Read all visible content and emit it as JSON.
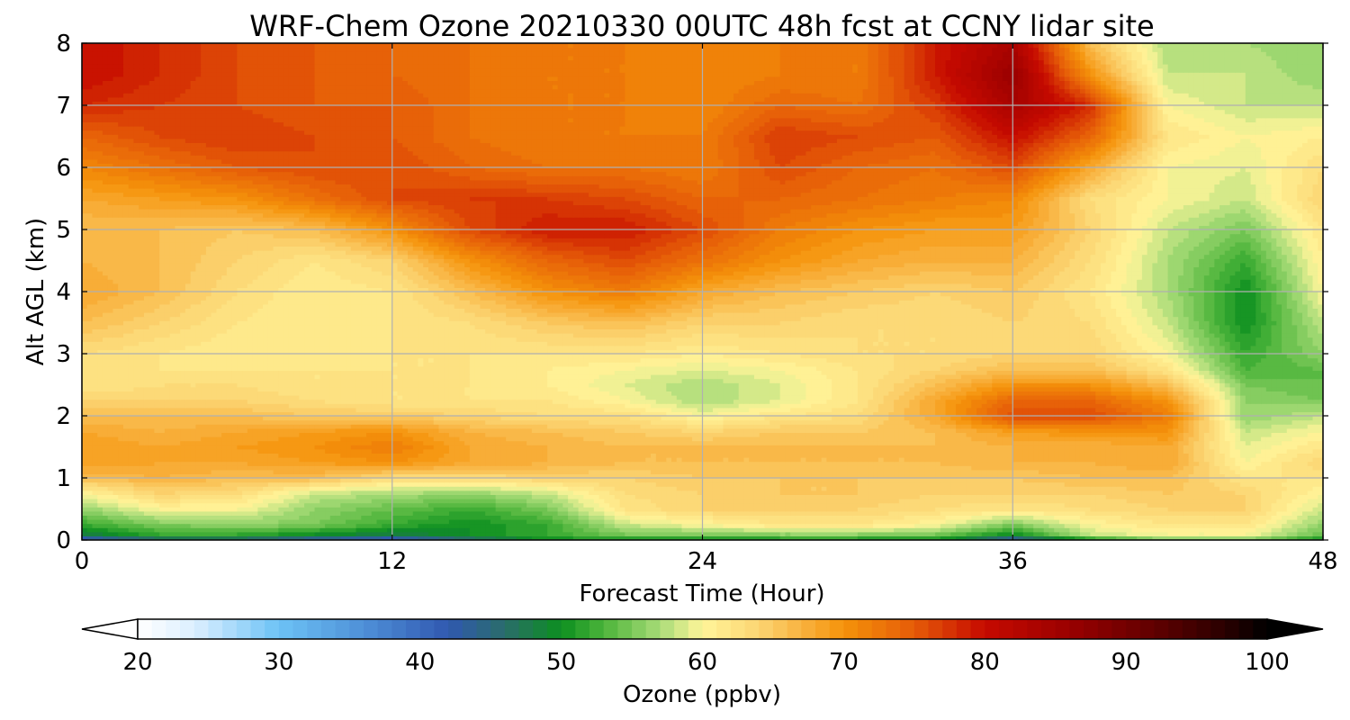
{
  "chart_data": {
    "type": "heatmap",
    "title": "WRF-Chem Ozone  20210330 00UTC 48h fcst at CCNY lidar site",
    "xlabel": "Forecast Time (Hour)",
    "ylabel": "Alt AGL (km)",
    "x_ticks": [
      "0",
      "12",
      "24",
      "36",
      "48"
    ],
    "y_ticks": [
      "0",
      "1",
      "2",
      "3",
      "4",
      "5",
      "6",
      "7",
      "8"
    ],
    "xlim": [
      0,
      48
    ],
    "ylim": [
      0,
      8
    ],
    "grid": true,
    "x": [
      0,
      3,
      6,
      9,
      12,
      15,
      18,
      21,
      24,
      27,
      30,
      33,
      36,
      39,
      42,
      45,
      48
    ],
    "y": [
      0,
      0.1,
      0.25,
      0.5,
      0.75,
      1,
      1.25,
      1.5,
      1.75,
      2,
      2.25,
      2.5,
      2.75,
      3,
      3.5,
      4,
      4.5,
      5,
      5.5,
      6,
      6.5,
      7,
      7.5,
      8
    ],
    "z": [
      [
        40,
        45,
        45,
        42,
        40,
        45,
        50,
        50,
        50,
        50,
        50,
        50,
        42,
        50,
        55,
        55,
        50
      ],
      [
        48,
        52,
        52,
        50,
        48,
        50,
        52,
        55,
        55,
        56,
        56,
        55,
        50,
        58,
        60,
        60,
        54
      ],
      [
        52,
        55,
        56,
        55,
        52,
        50,
        52,
        58,
        60,
        62,
        62,
        60,
        55,
        60,
        62,
        62,
        56
      ],
      [
        56,
        60,
        60,
        56,
        54,
        52,
        55,
        62,
        64,
        64,
        64,
        63,
        62,
        63,
        64,
        64,
        58
      ],
      [
        60,
        64,
        63,
        58,
        57,
        56,
        58,
        63,
        64,
        65,
        65,
        64,
        64,
        64,
        65,
        64,
        60
      ],
      [
        66,
        67,
        66,
        66,
        63,
        63,
        64,
        64,
        65,
        65,
        65,
        65,
        65,
        66,
        66,
        62,
        62
      ],
      [
        69,
        68,
        68,
        69,
        70,
        68,
        67,
        66,
        66,
        66,
        66,
        66,
        67,
        67,
        68,
        60,
        64
      ],
      [
        69,
        68,
        69,
        70,
        72,
        68,
        67,
        66,
        66,
        66,
        66,
        66,
        67,
        67,
        68,
        59,
        62
      ],
      [
        68,
        67,
        68,
        69,
        70,
        67,
        66,
        65,
        64,
        65,
        65,
        66,
        69,
        70,
        70,
        58,
        60
      ],
      [
        66,
        66,
        66,
        65,
        65,
        64,
        63,
        63,
        60,
        62,
        63,
        68,
        76,
        76,
        72,
        56,
        58
      ],
      [
        64,
        64,
        64,
        63,
        62,
        62,
        62,
        60,
        57,
        59,
        62,
        68,
        74,
        74,
        70,
        56,
        55
      ],
      [
        62,
        63,
        63,
        62,
        62,
        62,
        61,
        59,
        57,
        59,
        62,
        66,
        70,
        70,
        66,
        55,
        54
      ],
      [
        62,
        62,
        62,
        62,
        62,
        62,
        61,
        60,
        59,
        60,
        62,
        64,
        66,
        66,
        62,
        53,
        54
      ],
      [
        63,
        62,
        61,
        61,
        62,
        62,
        62,
        62,
        61,
        62,
        63,
        63,
        64,
        64,
        60,
        52,
        56
      ],
      [
        66,
        64,
        62,
        61,
        62,
        63,
        65,
        66,
        64,
        64,
        63,
        63,
        64,
        63,
        58,
        50,
        58
      ],
      [
        68,
        66,
        63,
        61,
        62,
        66,
        70,
        72,
        68,
        66,
        65,
        64,
        65,
        62,
        57,
        50,
        60
      ],
      [
        67,
        66,
        64,
        62,
        64,
        70,
        74,
        76,
        73,
        70,
        68,
        67,
        67,
        63,
        57,
        52,
        61
      ],
      [
        66,
        66,
        65,
        66,
        70,
        76,
        79,
        79,
        76,
        72,
        70,
        69,
        69,
        64,
        58,
        55,
        62
      ],
      [
        68,
        69,
        70,
        73,
        76,
        77,
        77,
        76,
        74,
        74,
        73,
        72,
        71,
        63,
        60,
        58,
        64
      ],
      [
        71,
        73,
        75,
        76,
        76,
        74,
        73,
        73,
        72,
        76,
        74,
        73,
        76,
        68,
        60,
        59,
        63
      ],
      [
        74,
        76,
        77,
        76,
        75,
        73,
        72,
        72,
        72,
        77,
        76,
        75,
        80,
        74,
        62,
        60,
        61
      ],
      [
        78,
        77,
        76,
        75,
        75,
        73,
        72,
        72,
        71,
        74,
        73,
        77,
        84,
        78,
        60,
        58,
        58
      ],
      [
        80,
        78,
        76,
        75,
        74,
        73,
        72,
        72,
        71,
        72,
        72,
        79,
        86,
        70,
        58,
        58,
        56
      ],
      [
        80,
        78,
        76,
        75,
        74,
        73,
        72,
        72,
        71,
        72,
        72,
        79,
        84,
        66,
        57,
        57,
        56
      ]
    ],
    "colorbar": {
      "label": "Ozone  (ppbv)",
      "min": 20,
      "max": 100,
      "ticks": [
        "20",
        "30",
        "40",
        "50",
        "60",
        "70",
        "80",
        "90",
        "100"
      ],
      "extend": "both",
      "stops": [
        [
          20,
          "#ffffff"
        ],
        [
          24,
          "#dcefff"
        ],
        [
          30,
          "#6cc2f5"
        ],
        [
          36,
          "#4f90d8"
        ],
        [
          42,
          "#3058b0"
        ],
        [
          46,
          "#2a6d6a"
        ],
        [
          50,
          "#0c8f20"
        ],
        [
          53,
          "#4cb43a"
        ],
        [
          57,
          "#a8dc78"
        ],
        [
          60,
          "#fff59a"
        ],
        [
          64,
          "#fcd572"
        ],
        [
          67,
          "#f8b240"
        ],
        [
          70,
          "#f5930a"
        ],
        [
          75,
          "#e55b08"
        ],
        [
          80,
          "#c60a00"
        ],
        [
          86,
          "#9a0000"
        ],
        [
          92,
          "#600000"
        ],
        [
          97,
          "#2a0000"
        ],
        [
          100,
          "#000000"
        ]
      ]
    }
  }
}
